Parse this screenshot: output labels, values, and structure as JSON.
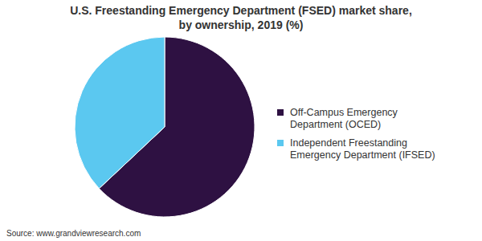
{
  "chart_data": {
    "type": "pie",
    "title": "U.S. Freestanding Emergency Department (FSED) market share, by ownership, 2019 (%)",
    "categories": [
      "Off-Campus Emergency Department (OCED)",
      "Independent Freestanding Emergency Department (IFSED)"
    ],
    "values": [
      63,
      37
    ],
    "colors": [
      "#2e1142",
      "#5bc8f0"
    ],
    "legend": "right",
    "source": "Source: www.grandviewresearch.com"
  }
}
